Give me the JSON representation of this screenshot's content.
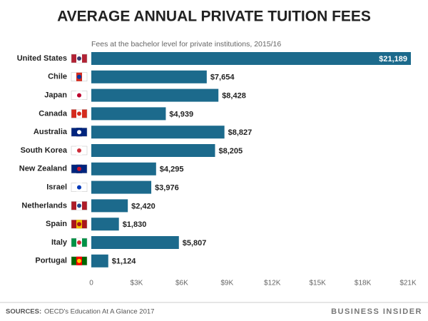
{
  "chart_data": {
    "type": "bar",
    "orientation": "horizontal",
    "title": "AVERAGE ANNUAL PRIVATE TUITION FEES",
    "subtitle": "Fees at the bachelor level for private institutions, 2015/16",
    "categories": [
      "United States",
      "Chile",
      "Japan",
      "Canada",
      "Australia",
      "South Korea",
      "New Zealand",
      "Israel",
      "Netherlands",
      "Spain",
      "Italy",
      "Portugal"
    ],
    "values": [
      21189,
      7654,
      8428,
      4939,
      8827,
      8205,
      4295,
      3976,
      2420,
      1830,
      5807,
      1124
    ],
    "value_labels": [
      "$21,189",
      "$7,654",
      "$8,428",
      "$4,939",
      "$8,827",
      "$8,205",
      "$4,295",
      "$3,976",
      "$2,420",
      "$1,830",
      "$5,807",
      "$1,124"
    ],
    "color": "#1c6a8c",
    "xlim": [
      0,
      21000
    ],
    "xticks": [
      0,
      {
        "value": 3000,
        "label": "$3K"
      },
      {
        "value": 6000,
        "label": "$6K"
      },
      {
        "value": 9000,
        "label": "$9K"
      },
      {
        "value": 12000,
        "label": "$12K"
      },
      {
        "value": 15000,
        "label": "$15K"
      },
      {
        "value": 18000,
        "label": "$18K"
      },
      {
        "value": 21000,
        "label": "$21K"
      }
    ],
    "grid": false,
    "source_label": "SOURCES:",
    "source": "OECD's Education At A Glance 2017",
    "brand": "BUSINESS INSIDER"
  }
}
